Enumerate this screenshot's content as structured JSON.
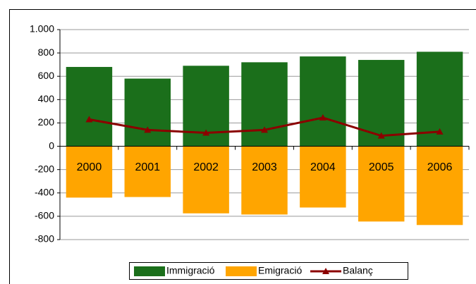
{
  "chart_data": {
    "type": "bar-line",
    "categories": [
      "2000",
      "2001",
      "2002",
      "2003",
      "2004",
      "2005",
      "2006"
    ],
    "series": [
      {
        "name": "Immigració",
        "type": "bar",
        "color": "#1b6f1b",
        "values": [
          680,
          580,
          690,
          720,
          770,
          740,
          810
        ]
      },
      {
        "name": "Emigració",
        "type": "bar",
        "color": "#ffa500",
        "values": [
          -440,
          -435,
          -575,
          -585,
          -525,
          -645,
          -675
        ]
      },
      {
        "name": "Balanç",
        "type": "line",
        "color": "#8b0000",
        "values": [
          230,
          140,
          115,
          140,
          245,
          90,
          125
        ]
      }
    ],
    "ylim": [
      -800,
      1000
    ],
    "yticks": [
      -800,
      -600,
      -400,
      -200,
      0,
      200,
      400,
      600,
      800,
      {
        "value": 1000,
        "label": "1.000"
      }
    ],
    "grid": true,
    "legend": "bottom"
  }
}
